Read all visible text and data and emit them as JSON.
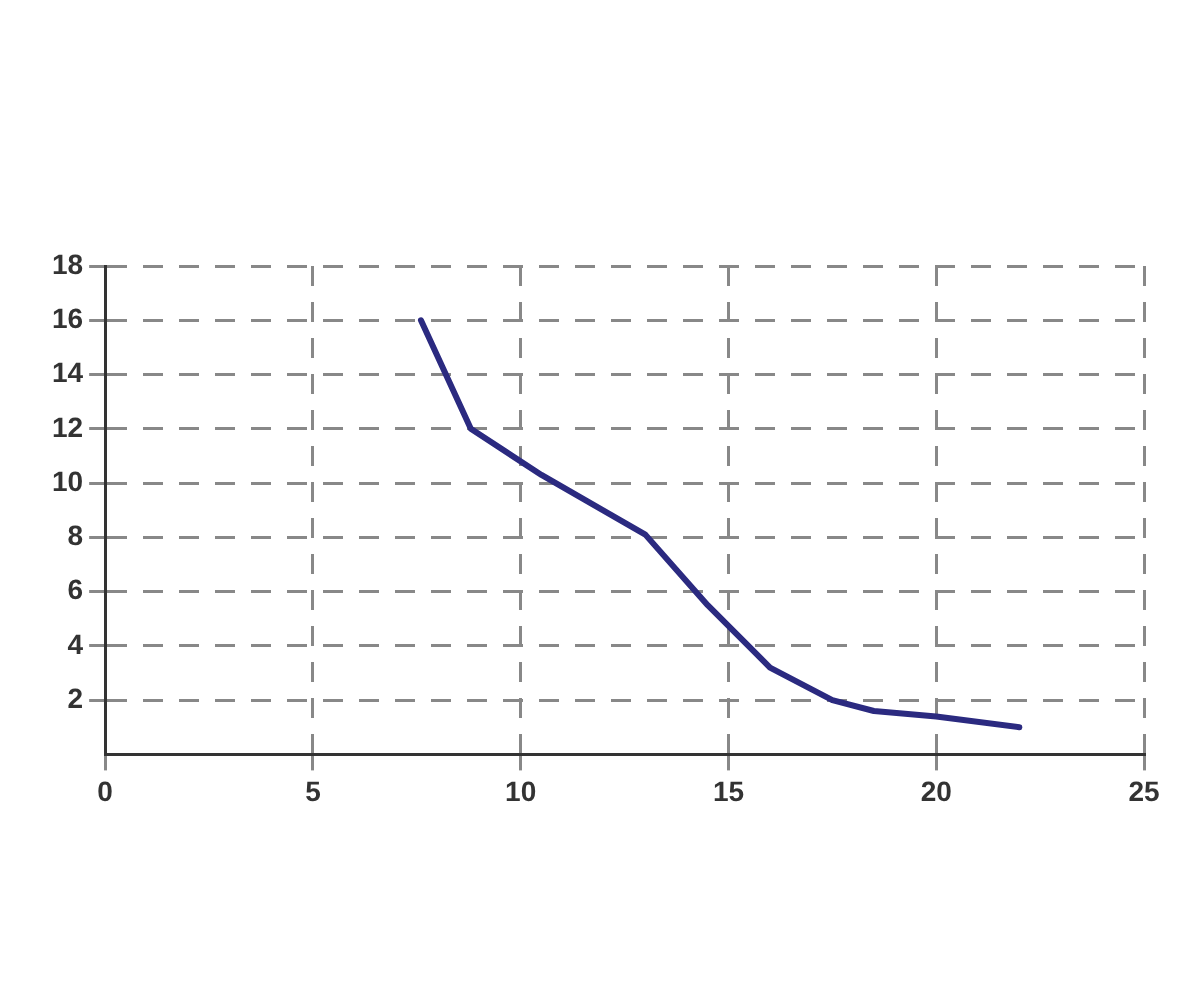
{
  "chart_data": {
    "type": "line",
    "x": [
      7.6,
      8.8,
      10.5,
      13,
      14.5,
      16,
      17.5,
      18.5,
      20,
      22
    ],
    "series": [
      {
        "color": "#2b2a80",
        "values": [
          16,
          12,
          10.3,
          8.1,
          5.5,
          3.2,
          2,
          1.6,
          1.4,
          1
        ]
      }
    ],
    "xlim": [
      0,
      25
    ],
    "xticks": [
      0,
      5,
      10,
      15,
      20,
      25
    ],
    "ylim": [
      0,
      18
    ],
    "yticks": [
      2,
      4,
      6,
      8,
      10,
      12,
      14,
      16,
      18
    ],
    "grid": true,
    "legend": false,
    "marker": "none",
    "line_style": "solid"
  }
}
